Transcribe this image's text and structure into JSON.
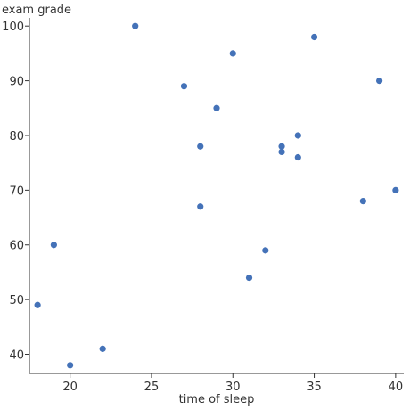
{
  "chart_data": {
    "type": "scatter",
    "xlabel": "time of sleep",
    "ylabel": "exam grade",
    "xlim": [
      17.5,
      40.5
    ],
    "ylim": [
      36.5,
      101.5
    ],
    "xticks": [
      20,
      25,
      30,
      35,
      40
    ],
    "yticks": [
      40,
      50,
      60,
      70,
      80,
      90,
      100
    ],
    "grid": false,
    "legend": "none",
    "marker_color": "#4472b8",
    "points": [
      {
        "x": 18,
        "y": 49
      },
      {
        "x": 19,
        "y": 60
      },
      {
        "x": 20,
        "y": 38
      },
      {
        "x": 22,
        "y": 41
      },
      {
        "x": 24,
        "y": 100
      },
      {
        "x": 27,
        "y": 89
      },
      {
        "x": 28,
        "y": 78
      },
      {
        "x": 28,
        "y": 67
      },
      {
        "x": 29,
        "y": 85
      },
      {
        "x": 30,
        "y": 95
      },
      {
        "x": 31,
        "y": 54
      },
      {
        "x": 32,
        "y": 59
      },
      {
        "x": 33,
        "y": 78
      },
      {
        "x": 33,
        "y": 77
      },
      {
        "x": 34,
        "y": 80
      },
      {
        "x": 34,
        "y": 76
      },
      {
        "x": 35,
        "y": 98
      },
      {
        "x": 38,
        "y": 68
      },
      {
        "x": 39,
        "y": 90
      },
      {
        "x": 40,
        "y": 70
      }
    ]
  }
}
